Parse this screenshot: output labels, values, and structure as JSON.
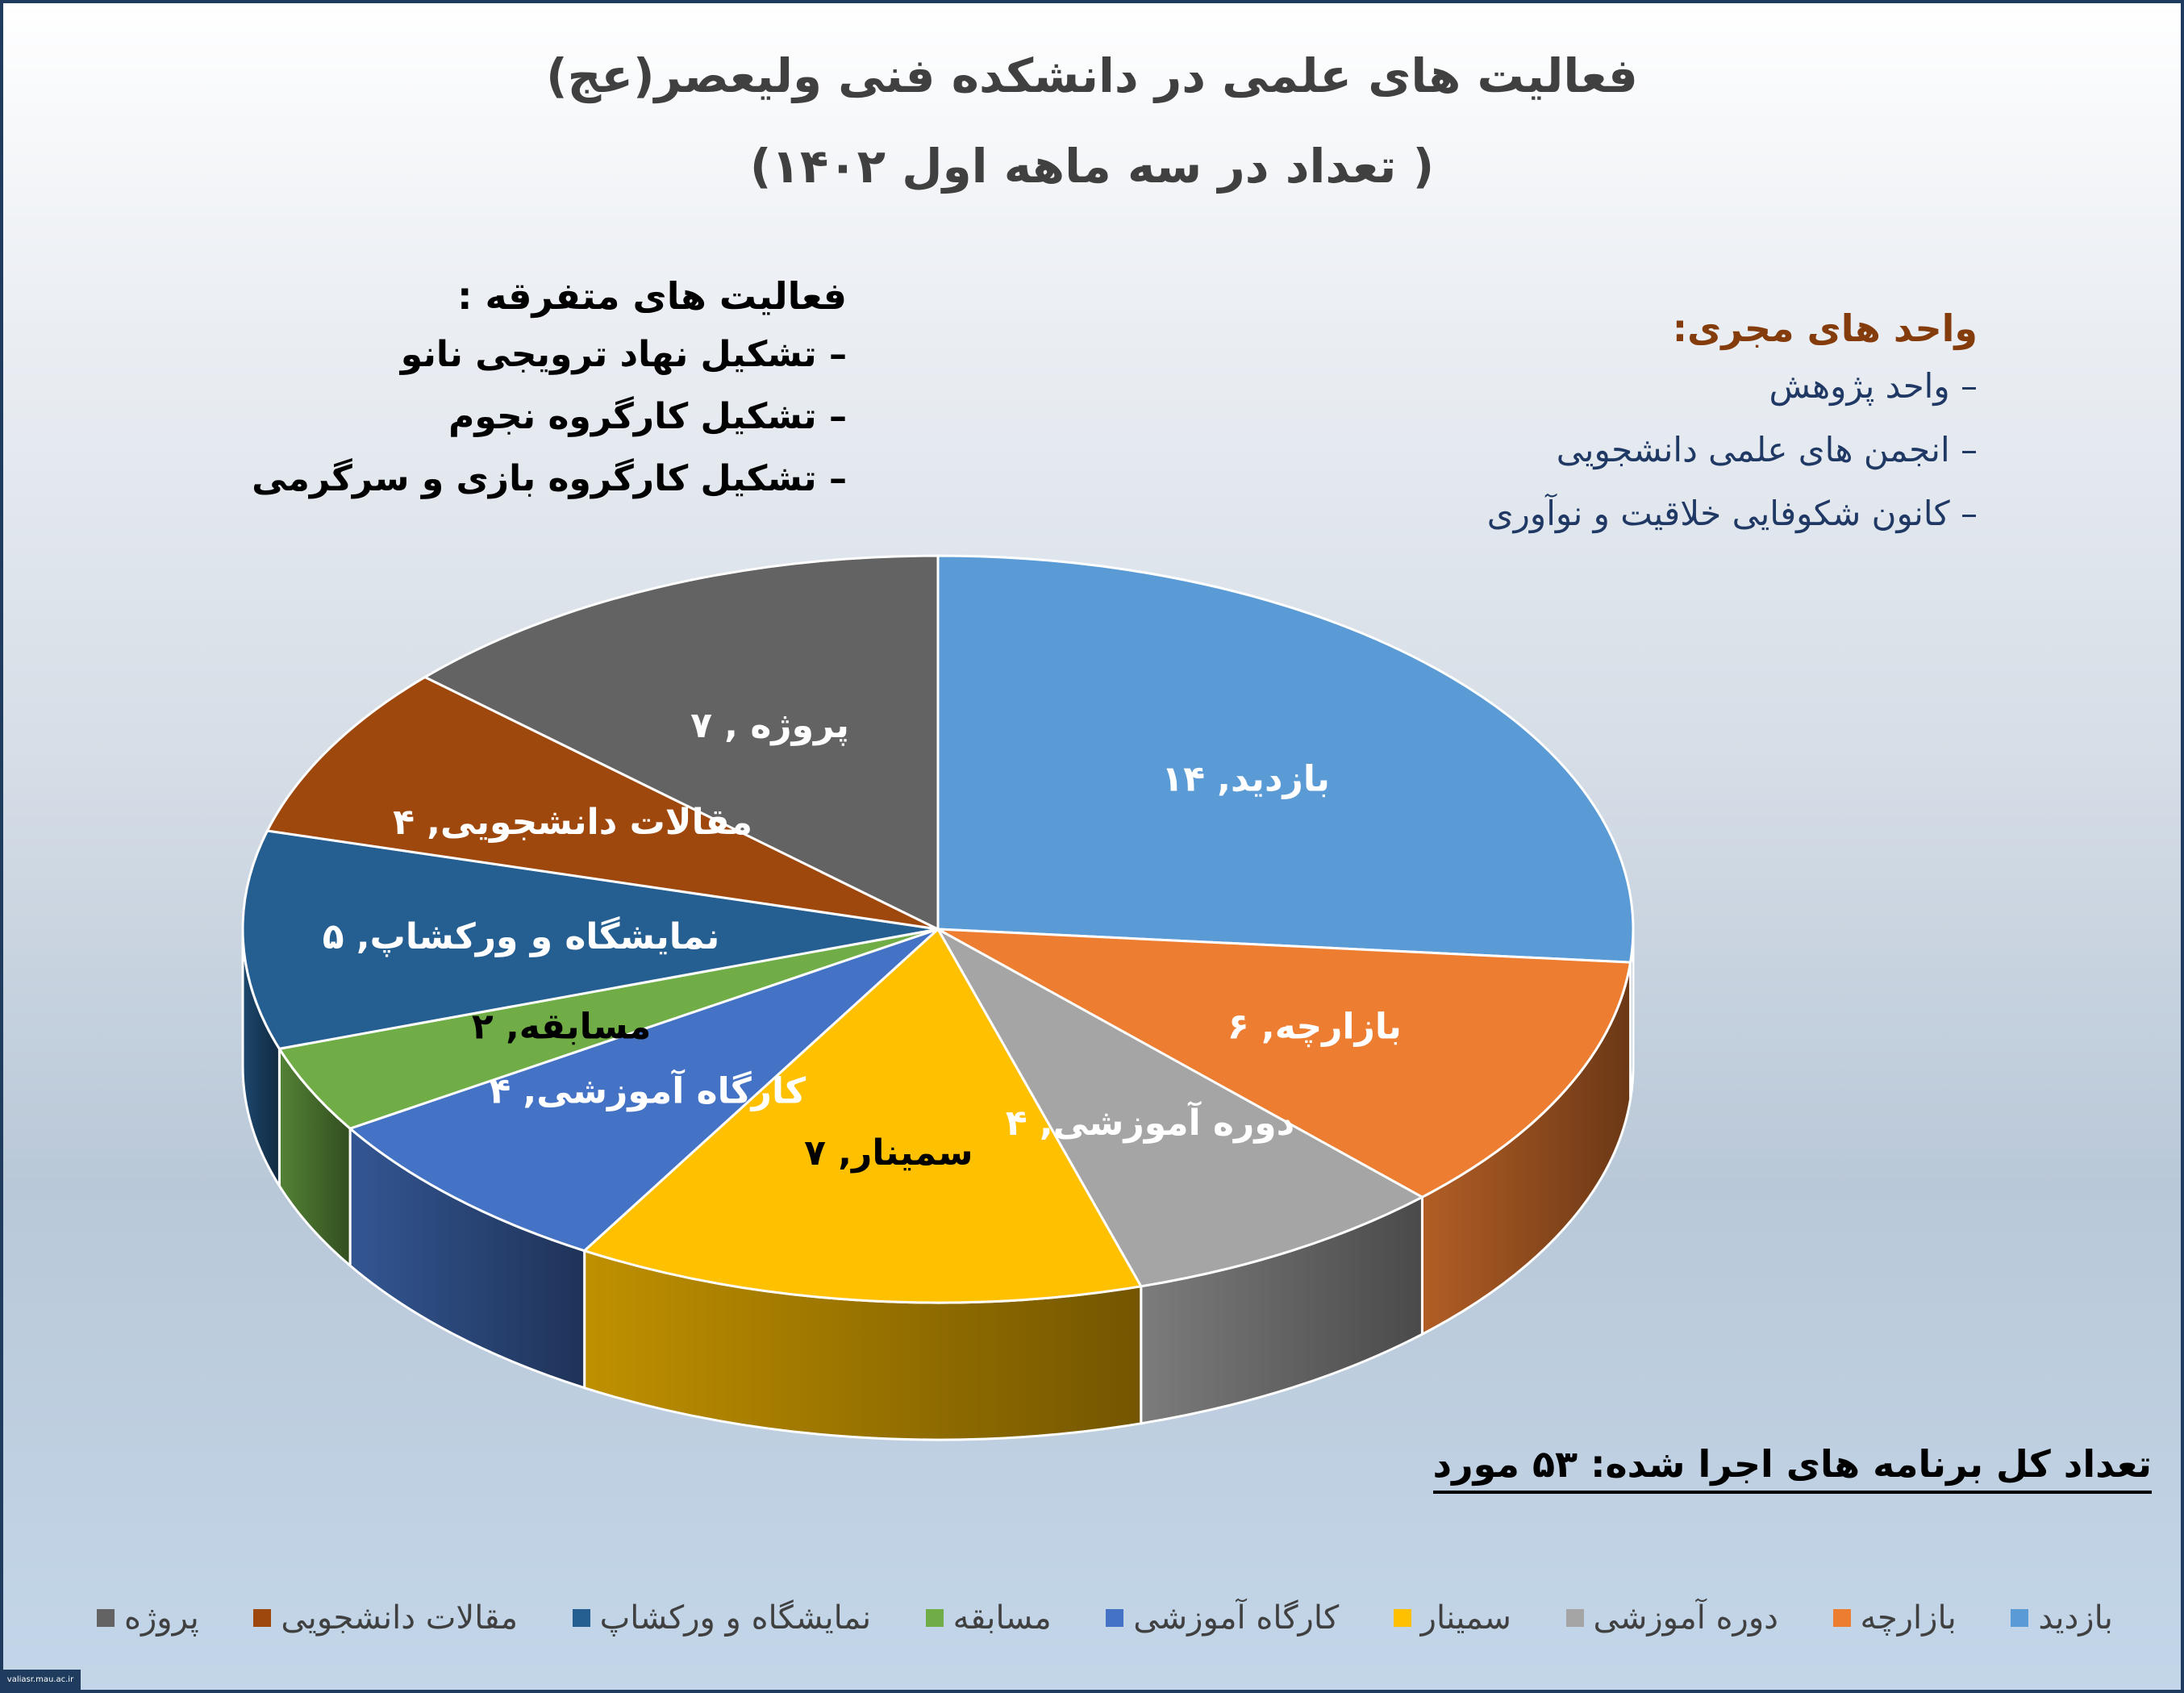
{
  "title_line1": "فعالیت های علمی در دانشکده فنی ولیعصر(عج)",
  "title_line2": "( تعداد در سه ماهه اول ۱۴۰۲)",
  "misc_activities": {
    "heading": "فعالیت های متفرقه  :",
    "items": [
      "تشکیل نهاد ترویجی نانو",
      "تشکیل کارگروه نجوم",
      "تشکیل کارگروه بازی و سرگرمی"
    ]
  },
  "executive_units": {
    "heading": "واحد های مجری:",
    "items": [
      "واحد پژوهش",
      "انجمن های علمی دانشجویی",
      "کانون شکوفایی خلاقیت و نوآوری"
    ]
  },
  "total_text": "تعداد کل برنامه های اجرا شده:  ۵۳  مورد",
  "credit_text": "valiasr.mau.ac.ir",
  "chart_data": {
    "type": "pie",
    "style": "3d",
    "categories": [
      "بازدید",
      "بازارچه",
      "دوره آموزشی",
      "سمینار",
      "کارگاه آموزشی",
      "مسابقه",
      "نمایشگاه و ورکشاپ",
      "مقالات دانشجویی",
      "پروژه"
    ],
    "values": [
      14,
      6,
      4,
      7,
      4,
      2,
      5,
      4,
      7
    ],
    "data_labels": [
      "بازدید, ۱۴",
      "بازارچه, ۶",
      "دوره آموزشی, ۴",
      "سمینار, ۷",
      "کارگاه آموزشی, ۴",
      "مسابقه, ۲",
      "نمایشگاه و ورکشاپ, ۵",
      "مقالات دانشجویی, ۴",
      "پروژه , ۷"
    ],
    "colors": [
      "#5b9bd5",
      "#ed7d31",
      "#a5a5a5",
      "#ffc000",
      "#4472c4",
      "#70ad47",
      "#255e91",
      "#9e480e",
      "#636363"
    ],
    "label_colors": [
      "#ffffff",
      "#ffffff",
      "#ffffff",
      "#000000",
      "#ffffff",
      "#000000",
      "#ffffff",
      "#ffffff",
      "#ffffff"
    ],
    "legend_position": "bottom"
  }
}
